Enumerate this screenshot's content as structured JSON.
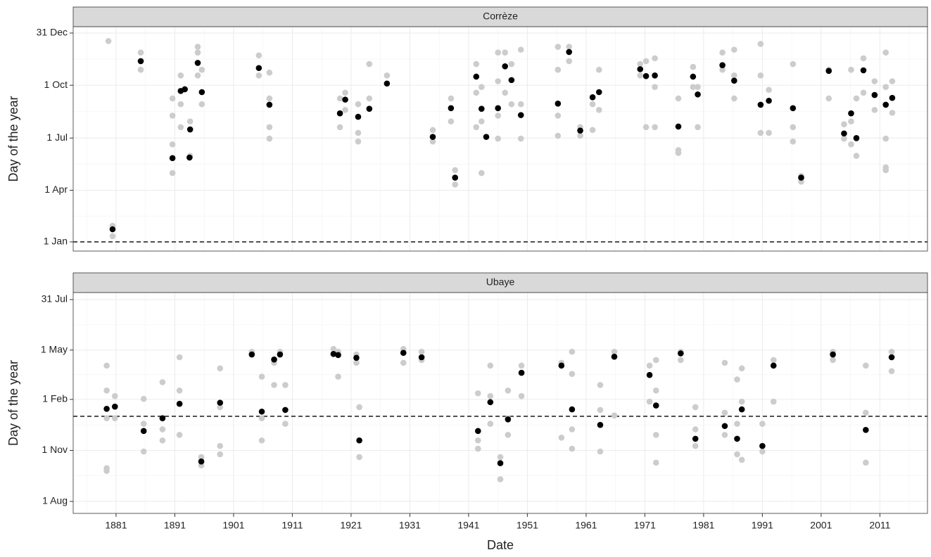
{
  "chart_data": [
    {
      "type": "scatter",
      "strip": "Corrèze",
      "ylabel": "Day of the year",
      "xlim": [
        1873.7,
        2019.1
      ],
      "xticks": [
        1881,
        1891,
        1901,
        1911,
        1921,
        1931,
        1941,
        1951,
        1961,
        1971,
        1981,
        1991,
        2001,
        2011
      ],
      "ylim": [
        -16,
        375
      ],
      "yticks": [
        {
          "value": 0,
          "label": "1 Jan"
        },
        {
          "value": 90,
          "label": "1 Apr"
        },
        {
          "value": 181,
          "label": "1 Jul"
        },
        {
          "value": 273,
          "label": "1 Oct"
        },
        {
          "value": 364,
          "label": "31 Dec"
        }
      ],
      "hline": 0,
      "grid": true,
      "series": [
        {
          "color": "#cccccc",
          "x": [
            1879.7,
            1880.4,
            1880.4,
            1885.2,
            1885.2,
            1890.6,
            1890.6,
            1890.6,
            1890.6,
            1892.0,
            1892.0,
            1892.0,
            1893.6,
            1893.6,
            1894.9,
            1894.9,
            1894.9,
            1895.6,
            1895.6,
            1905.3,
            1905.3,
            1907.1,
            1907.1,
            1907.1,
            1907.1,
            1919.1,
            1919.1,
            1920.0,
            1920.0,
            1922.2,
            1922.2,
            1922.2,
            1924.1,
            1924.1,
            1927.1,
            1934.9,
            1934.9,
            1938.0,
            1938.0,
            1938.7,
            1938.7,
            1942.3,
            1942.3,
            1942.3,
            1943.2,
            1943.2,
            1943.2,
            1946.0,
            1946.0,
            1946.0,
            1946.0,
            1947.2,
            1947.2,
            1948.3,
            1948.3,
            1949.9,
            1949.9,
            1949.9,
            1956.2,
            1956.2,
            1956.2,
            1956.2,
            1958.1,
            1958.1,
            1960.0,
            1960.0,
            1962.1,
            1962.1,
            1963.2,
            1963.2,
            1970.2,
            1970.2,
            1971.2,
            1971.2,
            1972.7,
            1972.7,
            1972.7,
            1976.7,
            1976.7,
            1976.7,
            1979.2,
            1979.2,
            1980.0,
            1980.0,
            1984.2,
            1984.2,
            1986.2,
            1986.2,
            1986.2,
            1990.7,
            1990.7,
            1990.7,
            1992.1,
            1992.1,
            1996.2,
            1996.2,
            1996.2,
            1997.6,
            1997.6,
            2002.3,
            2002.3,
            2004.9,
            2004.9,
            2006.1,
            2006.1,
            2006.1,
            2007.0,
            2007.0,
            2007.0,
            2008.2,
            2008.2,
            2010.1,
            2010.1,
            2012.0,
            2012.0,
            2012.0,
            2012.0,
            2012.0,
            2013.1,
            2013.1
          ],
          "values": [
            350,
            28,
            10,
            330,
            300,
            250,
            220,
            170,
            120,
            290,
            240,
            200,
            210,
            150,
            340,
            330,
            290,
            300,
            240,
            325,
            290,
            295,
            250,
            200,
            180,
            250,
            200,
            260,
            230,
            240,
            190,
            175,
            310,
            250,
            290,
            195,
            175,
            250,
            210,
            125,
            100,
            310,
            260,
            200,
            270,
            210,
            120,
            330,
            280,
            220,
            180,
            330,
            260,
            310,
            240,
            335,
            240,
            180,
            340,
            300,
            220,
            185,
            340,
            315,
            200,
            185,
            240,
            195,
            300,
            230,
            310,
            290,
            315,
            200,
            320,
            270,
            200,
            250,
            160,
            155,
            305,
            270,
            270,
            200,
            330,
            300,
            335,
            290,
            250,
            345,
            290,
            190,
            265,
            190,
            310,
            200,
            175,
            115,
            105,
            300,
            250,
            205,
            180,
            300,
            210,
            170,
            250,
            180,
            150,
            320,
            260,
            280,
            230,
            330,
            270,
            180,
            130,
            125,
            280,
            225
          ]
        },
        {
          "color": "#000000",
          "x": [
            1880.4,
            1885.2,
            1890.6,
            1892.0,
            1892.7,
            1893.6,
            1893.5,
            1894.9,
            1895.6,
            1905.3,
            1907.1,
            1919.1,
            1920.0,
            1922.2,
            1924.1,
            1927.1,
            1934.9,
            1938.7,
            1938.0,
            1942.3,
            1943.2,
            1944.0,
            1946.0,
            1947.2,
            1948.3,
            1949.9,
            1956.2,
            1958.1,
            1960.0,
            1962.1,
            1963.2,
            1970.2,
            1971.2,
            1972.7,
            1976.7,
            1979.2,
            1980.0,
            1984.2,
            1986.2,
            1990.7,
            1992.1,
            1996.2,
            1997.6,
            2002.3,
            2004.9,
            2006.1,
            2007.0,
            2008.2,
            2010.1,
            2012.0,
            2013.1
          ],
          "values": [
            22,
            315,
            146,
            263,
            266,
            196,
            147,
            312,
            261,
            303,
            239,
            224,
            248,
            218,
            232,
            276,
            183,
            112,
            233,
            288,
            232,
            183,
            233,
            306,
            282,
            221,
            241,
            331,
            194,
            252,
            261,
            301,
            289,
            290,
            201,
            288,
            257,
            308,
            281,
            239,
            246,
            233,
            112,
            298,
            189,
            224,
            181,
            299,
            256,
            239,
            251
          ]
        }
      ]
    },
    {
      "type": "scatter",
      "strip": "Ubaye",
      "ylabel": "Day of the year",
      "xlabel": "Date",
      "xlim": [
        1873.7,
        2019.1
      ],
      "xticks": [
        1881,
        1891,
        1901,
        1911,
        1921,
        1931,
        1941,
        1951,
        1961,
        1971,
        1981,
        1991,
        2001,
        2011
      ],
      "ylim": [
        -21.6,
        376.7
      ],
      "yticks": [
        {
          "value": 0,
          "label": "1 Aug"
        },
        {
          "value": 92,
          "label": "1 Nov"
        },
        {
          "value": 184,
          "label": "1 Feb"
        },
        {
          "value": 273,
          "label": "1 May"
        },
        {
          "value": 364,
          "label": "31 Jul"
        }
      ],
      "hline": 153.5,
      "grid": true,
      "series": [
        {
          "color": "#cccccc",
          "x": [
            1879.4,
            1879.4,
            1879.4,
            1879.4,
            1879.4,
            1880.8,
            1880.8,
            1885.7,
            1885.7,
            1885.7,
            1888.9,
            1888.9,
            1888.9,
            1891.8,
            1891.8,
            1891.8,
            1895.5,
            1895.5,
            1898.7,
            1898.7,
            1898.7,
            1898.7,
            1904.1,
            1905.8,
            1905.8,
            1905.8,
            1907.9,
            1907.9,
            1908.9,
            1909.8,
            1909.8,
            1918.0,
            1918.8,
            1918.8,
            1921.9,
            1921.9,
            1922.4,
            1922.4,
            1929.9,
            1929.9,
            1933.0,
            1933.0,
            1942.6,
            1942.6,
            1942.6,
            1944.7,
            1944.7,
            1944.7,
            1946.4,
            1946.4,
            1947.7,
            1947.7,
            1947.7,
            1950.0,
            1950.0,
            1956.8,
            1956.8,
            1958.6,
            1958.6,
            1958.6,
            1958.6,
            1963.4,
            1963.4,
            1963.4,
            1965.8,
            1965.8,
            1971.8,
            1971.8,
            1972.9,
            1972.9,
            1972.9,
            1972.9,
            1977.1,
            1977.1,
            1979.6,
            1979.6,
            1979.6,
            1984.6,
            1984.6,
            1984.6,
            1986.7,
            1986.7,
            1986.7,
            1987.5,
            1987.5,
            1987.5,
            1991.0,
            1991.0,
            1992.9,
            1992.9,
            2003.0,
            2003.0,
            2008.6,
            2008.6,
            2008.6,
            2013.0,
            2013.0
          ],
          "values": [
            245,
            200,
            150,
            60,
            55,
            190,
            150,
            185,
            140,
            90,
            215,
            130,
            110,
            260,
            200,
            120,
            80,
            65,
            240,
            170,
            100,
            85,
            270,
            225,
            150,
            110,
            250,
            210,
            270,
            210,
            140,
            275,
            270,
            225,
            265,
            250,
            170,
            80,
            275,
            250,
            270,
            255,
            195,
            110,
            95,
            245,
            190,
            140,
            80,
            40,
            200,
            150,
            120,
            245,
            190,
            250,
            115,
            270,
            230,
            130,
            95,
            210,
            165,
            90,
            270,
            155,
            245,
            180,
            255,
            200,
            120,
            70,
            270,
            255,
            170,
            130,
            100,
            250,
            160,
            120,
            220,
            140,
            85,
            240,
            180,
            75,
            140,
            90,
            255,
            180,
            270,
            255,
            245,
            160,
            70,
            270,
            235
          ]
        },
        {
          "color": "#000000",
          "x": [
            1879.4,
            1880.8,
            1885.7,
            1888.9,
            1891.8,
            1895.5,
            1898.7,
            1904.1,
            1905.8,
            1907.9,
            1908.9,
            1909.8,
            1918.0,
            1918.8,
            1921.9,
            1922.4,
            1929.9,
            1933.0,
            1942.6,
            1944.7,
            1946.4,
            1947.7,
            1950.0,
            1956.8,
            1958.6,
            1963.4,
            1965.8,
            1971.8,
            1972.9,
            1977.1,
            1979.6,
            1984.6,
            1986.7,
            1987.5,
            1991.0,
            1992.9,
            2003.0,
            2008.6,
            2013.0
          ],
          "values": [
            167,
            171,
            127,
            150,
            176,
            72,
            178,
            265,
            162,
            256,
            265,
            165,
            266,
            264,
            259,
            110,
            268,
            260,
            127,
            179,
            69,
            148,
            232,
            245,
            166,
            138,
            261,
            228,
            173,
            267,
            113,
            136,
            113,
            166,
            100,
            245,
            265,
            129,
            260
          ]
        }
      ]
    }
  ]
}
